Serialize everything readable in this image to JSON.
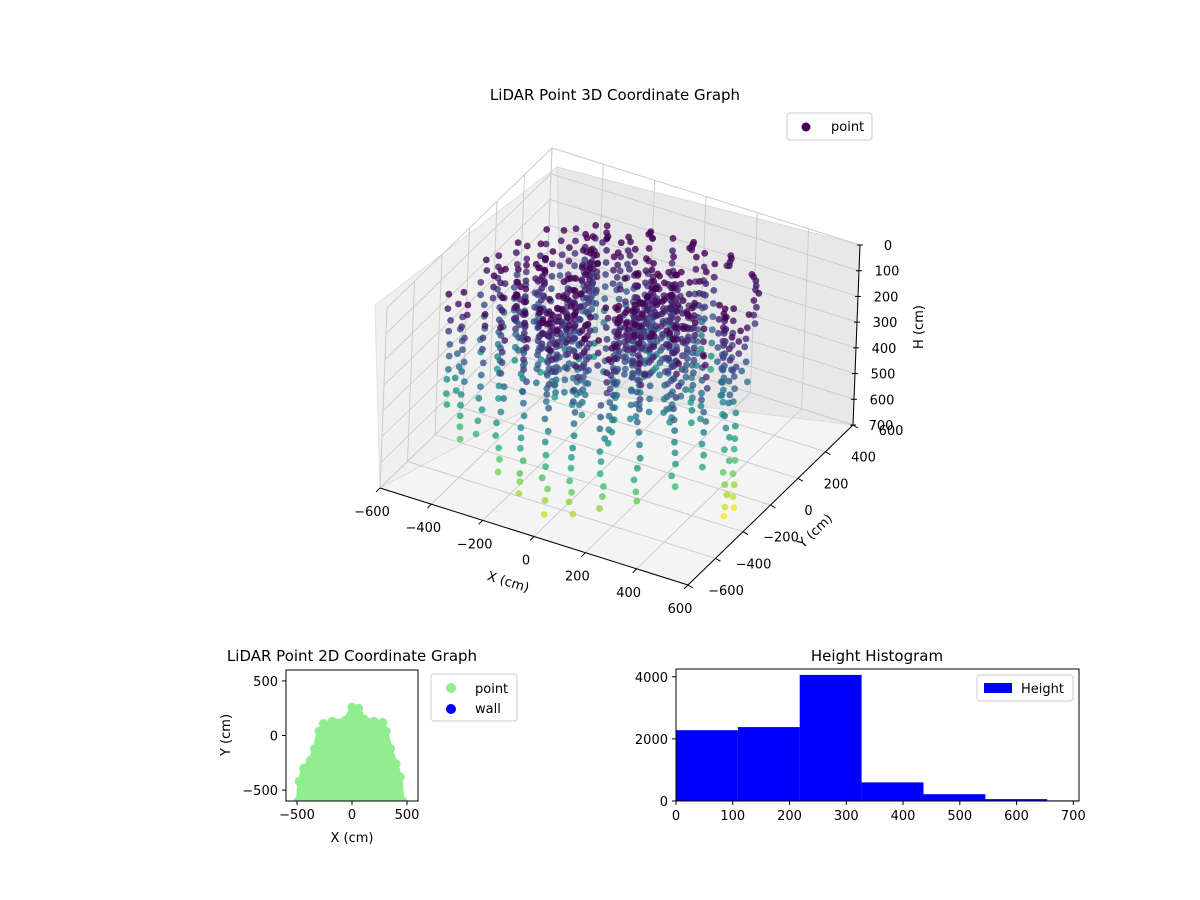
{
  "chart_data": [
    {
      "type": "scatter",
      "projection": "3d",
      "title": "LiDAR Point 3D Coordinate Graph",
      "xlabel": "X (cm)",
      "ylabel": "Y (cm)",
      "zlabel": "H (cm)",
      "xlim": [
        -600,
        600
      ],
      "ylim": [
        -600,
        600
      ],
      "zlim": [
        700,
        0
      ],
      "xticks": [
        "−600",
        "−400",
        "−200",
        "0",
        "200",
        "400",
        "600"
      ],
      "yticks": [
        "−600",
        "−400",
        "−200",
        "0",
        "200",
        "400",
        "600"
      ],
      "zticks": [
        "0",
        "100",
        "200",
        "300",
        "400",
        "500",
        "600",
        "700"
      ],
      "legend": {
        "placement": "upper-right",
        "entries": [
          {
            "name": "point",
            "color": "#440154"
          }
        ]
      },
      "colormap": "viridis",
      "grid": true,
      "series": [
        {
          "name": "point",
          "description_of_shape": "cylindrical cloud of vertical point columns centered near origin, radius ~450",
          "points": [
            {
              "x": -450,
              "y": -420,
              "h": 420
            },
            {
              "x": -430,
              "y": -380,
              "h": 380
            },
            {
              "x": -380,
              "y": -440,
              "h": 520
            },
            {
              "x": -300,
              "y": -460,
              "h": 470
            },
            {
              "x": -200,
              "y": -500,
              "h": 560
            },
            {
              "x": -100,
              "y": -520,
              "h": 610
            },
            {
              "x": 0,
              "y": -540,
              "h": 640
            },
            {
              "x": 100,
              "y": -530,
              "h": 620
            },
            {
              "x": 200,
              "y": -500,
              "h": 580
            },
            {
              "x": 320,
              "y": -460,
              "h": 540
            },
            {
              "x": 420,
              "y": -400,
              "h": 480
            },
            {
              "x": 480,
              "y": -300,
              "h": 430
            },
            {
              "x": 500,
              "y": -150,
              "h": 700
            },
            {
              "x": 500,
              "y": -100,
              "h": 690
            },
            {
              "x": 480,
              "y": 0,
              "h": 260
            },
            {
              "x": 440,
              "y": 150,
              "h": 120
            },
            {
              "x": 380,
              "y": 250,
              "h": 60
            },
            {
              "x": 250,
              "y": 300,
              "h": 40
            },
            {
              "x": 100,
              "y": 320,
              "h": 30
            },
            {
              "x": -50,
              "y": 300,
              "h": 20
            },
            {
              "x": -200,
              "y": 250,
              "h": 60
            },
            {
              "x": -320,
              "y": 150,
              "h": 180
            },
            {
              "x": -420,
              "y": 0,
              "h": 300
            },
            {
              "x": -460,
              "y": -150,
              "h": 360
            },
            {
              "x": -250,
              "y": -250,
              "h": 330
            },
            {
              "x": -100,
              "y": -300,
              "h": 280
            },
            {
              "x": 50,
              "y": -200,
              "h": 250
            },
            {
              "x": 200,
              "y": -250,
              "h": 300
            },
            {
              "x": 0,
              "y": 0,
              "h": 200
            },
            {
              "x": -150,
              "y": 80,
              "h": 150
            },
            {
              "x": 150,
              "y": 100,
              "h": 120
            },
            {
              "x": 300,
              "y": -100,
              "h": 220
            }
          ]
        }
      ]
    },
    {
      "type": "scatter",
      "title": "LiDAR Point 2D Coordinate Graph",
      "xlabel": "X (cm)",
      "ylabel": "Y (cm)",
      "xlim": [
        -600,
        600
      ],
      "ylim": [
        -600,
        600
      ],
      "xticks": [
        "−500",
        "0",
        "500"
      ],
      "yticks": [
        "−500",
        "0",
        "500"
      ],
      "legend": {
        "placement": "outside-right",
        "entries": [
          {
            "name": "point",
            "color": "#90ee90"
          },
          {
            "name": "wall",
            "color": "#0000ff"
          }
        ]
      },
      "series": [
        {
          "name": "point",
          "color": "#90ee90",
          "outline": [
            {
              "x": -490,
              "y": -600
            },
            {
              "x": -480,
              "y": -420
            },
            {
              "x": -440,
              "y": -300
            },
            {
              "x": -380,
              "y": -230
            },
            {
              "x": -340,
              "y": -120
            },
            {
              "x": -300,
              "y": 40
            },
            {
              "x": -260,
              "y": 110
            },
            {
              "x": -180,
              "y": 130
            },
            {
              "x": -60,
              "y": 140
            },
            {
              "x": 0,
              "y": 260
            },
            {
              "x": 60,
              "y": 250
            },
            {
              "x": 110,
              "y": 150
            },
            {
              "x": 200,
              "y": 130
            },
            {
              "x": 280,
              "y": 120
            },
            {
              "x": 310,
              "y": 40
            },
            {
              "x": 350,
              "y": -120
            },
            {
              "x": 400,
              "y": -260
            },
            {
              "x": 440,
              "y": -380
            },
            {
              "x": 460,
              "y": -600
            }
          ]
        },
        {
          "name": "wall",
          "color": "#0000ff",
          "points": []
        }
      ]
    },
    {
      "type": "bar",
      "subtype": "histogram",
      "title": "Height Histogram",
      "xlabel": "",
      "ylabel": "",
      "xlim": [
        0,
        710
      ],
      "ylim": [
        0,
        4250
      ],
      "xticks": [
        "0",
        "100",
        "200",
        "300",
        "400",
        "500",
        "600",
        "700"
      ],
      "yticks": [
        "0",
        "2000",
        "4000"
      ],
      "legend": {
        "placement": "upper-right",
        "entries": [
          {
            "name": "Height",
            "color": "#0000ff"
          }
        ]
      },
      "series": [
        {
          "name": "Height",
          "color": "#0000ff",
          "bins": [
            {
              "from": 0,
              "to": 109,
              "count": 2280
            },
            {
              "from": 109,
              "to": 218,
              "count": 2380
            },
            {
              "from": 218,
              "to": 327,
              "count": 4060
            },
            {
              "from": 327,
              "to": 436,
              "count": 600
            },
            {
              "from": 436,
              "to": 545,
              "count": 220
            },
            {
              "from": 545,
              "to": 654,
              "count": 60
            },
            {
              "from": 654,
              "to": 763,
              "count": 20
            }
          ]
        }
      ]
    }
  ]
}
